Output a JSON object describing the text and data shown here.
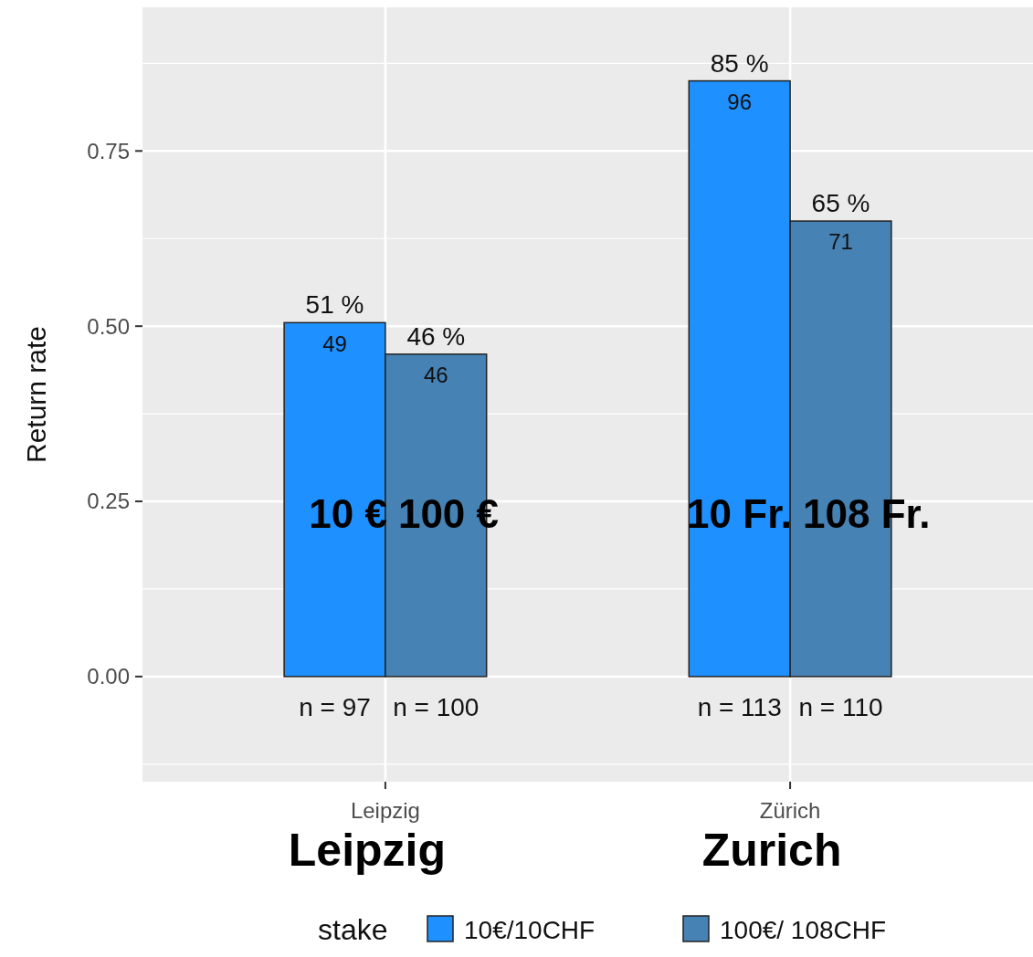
{
  "chart_data": {
    "type": "bar",
    "ylabel": "Return rate",
    "legend_title": "stake",
    "categories": [
      "Leipzig",
      "Zürich"
    ],
    "series": [
      {
        "name": "10€/10CHF",
        "color": "#1e90ff",
        "values": [
          0.505,
          0.85
        ],
        "value_labels": [
          "51 %",
          "85 %"
        ]
      },
      {
        "name": "100€/ 108CHF",
        "color": "#4682b4",
        "values": [
          0.46,
          0.65
        ],
        "value_labels": [
          "46 %",
          "65 %"
        ]
      }
    ],
    "ylim": [
      -0.15,
      0.955
    ],
    "yticks": [
      {
        "value": 0,
        "label": "0.00"
      },
      0.25,
      {
        "value": 0.5,
        "label": "0.50"
      },
      0.75
    ],
    "grid": true,
    "legend": "bottom",
    "annotations": [
      {
        "text": "49",
        "x": "Leipzig",
        "y": 0.475
      },
      {
        "text": "46",
        "x": "Leipzig",
        "y": 0.43
      },
      {
        "text": "96",
        "x": "Zürich",
        "y": 0.82
      },
      {
        "text": "71",
        "x": "Zürich",
        "y": 0.62
      },
      "n = 97",
      "n = 100",
      "n = 113",
      "n = 110",
      "10 €",
      "100 €",
      "10 Fr.",
      "108 Fr.",
      "Leipzig",
      "Zurich"
    ]
  }
}
